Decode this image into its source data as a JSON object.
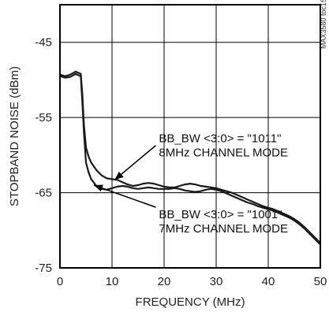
{
  "chart_data": {
    "type": "line",
    "xlabel": "FREQUENCY (MHz)",
    "ylabel": "STOPBAND NOISE (dBm)",
    "xlim": [
      0,
      50
    ],
    "ylim": [
      -75,
      -40
    ],
    "x_ticks": [
      0,
      10,
      20,
      30,
      40,
      50
    ],
    "y_ticks": [
      -45,
      -55,
      -65,
      -75
    ],
    "grid": true,
    "figure_code": "MAX3580 toc15",
    "series": [
      {
        "x": [
          0,
          1,
          2,
          3,
          4,
          4.3,
          4.6,
          5,
          5.5,
          6,
          7,
          8,
          9,
          10,
          11,
          12,
          13,
          14,
          15,
          16,
          17,
          18,
          19,
          20,
          21,
          22,
          23,
          24,
          25,
          26,
          27,
          28,
          29,
          30,
          31,
          32,
          33,
          34,
          35,
          36,
          37,
          38,
          39,
          40,
          41,
          42,
          43,
          44,
          45,
          46,
          47,
          48,
          49,
          50
        ],
        "values": [
          -49.3,
          -49.5,
          -49.3,
          -48.9,
          -49.2,
          -52,
          -56,
          -59,
          -60.2,
          -61,
          -62,
          -62.7,
          -63.1,
          -63.2,
          -63.3,
          -63.6,
          -63.9,
          -64.1,
          -64.0,
          -63.8,
          -63.7,
          -63.8,
          -64.0,
          -64.2,
          -64.3,
          -64.3,
          -64.1,
          -63.9,
          -63.8,
          -63.9,
          -64.1,
          -64.2,
          -64.3,
          -64.4,
          -64.6,
          -64.8,
          -65.0,
          -65.3,
          -65.6,
          -65.9,
          -66.2,
          -66.5,
          -66.8,
          -67.0,
          -67.2,
          -67.5,
          -67.8,
          -68.1,
          -68.5,
          -69.0,
          -69.6,
          -70.3,
          -71.0,
          -71.7
        ]
      },
      {
        "x": [
          0,
          1,
          2,
          3,
          4,
          4.3,
          4.6,
          5,
          5.5,
          6,
          7,
          8,
          9,
          10,
          11,
          12,
          13,
          14,
          15,
          16,
          17,
          18,
          19,
          20,
          21,
          22,
          23,
          24,
          25,
          26,
          27,
          28,
          29,
          30,
          31,
          32,
          33,
          34,
          35,
          36,
          37,
          38,
          39,
          40,
          41,
          42,
          43,
          44,
          45,
          46,
          47,
          48,
          49,
          50
        ],
        "values": [
          -49.5,
          -49.7,
          -49.6,
          -49.2,
          -49.5,
          -53,
          -57,
          -61,
          -62.3,
          -63.2,
          -64.1,
          -64.5,
          -64.6,
          -64.4,
          -64.2,
          -64.1,
          -64.2,
          -64.4,
          -64.5,
          -64.4,
          -64.3,
          -64.4,
          -64.5,
          -64.5,
          -64.5,
          -64.4,
          -64.5,
          -64.7,
          -64.8,
          -64.9,
          -64.8,
          -64.6,
          -64.5,
          -64.6,
          -64.8,
          -65.1,
          -65.4,
          -65.7,
          -66.0,
          -66.3,
          -66.5,
          -66.8,
          -67.0,
          -67.2,
          -67.4,
          -67.7,
          -68.0,
          -68.3,
          -68.7,
          -69.2,
          -69.8,
          -70.5,
          -71.2,
          -71.9
        ]
      }
    ],
    "annotations": [
      {
        "line1": "BB_BW <3:0> = \"1011\"",
        "line2": "8MHz CHANNEL MODE",
        "target_x": 10.5,
        "target_y": -63.3,
        "text_x": 19,
        "text_y": -58.3
      },
      {
        "line1": "BB_BW <3:0> = \"1001\"",
        "line2": "7MHz CHANNEL MODE",
        "target_x": 6.5,
        "target_y": -64.0,
        "text_x": 19,
        "text_y": -68.4
      }
    ]
  }
}
